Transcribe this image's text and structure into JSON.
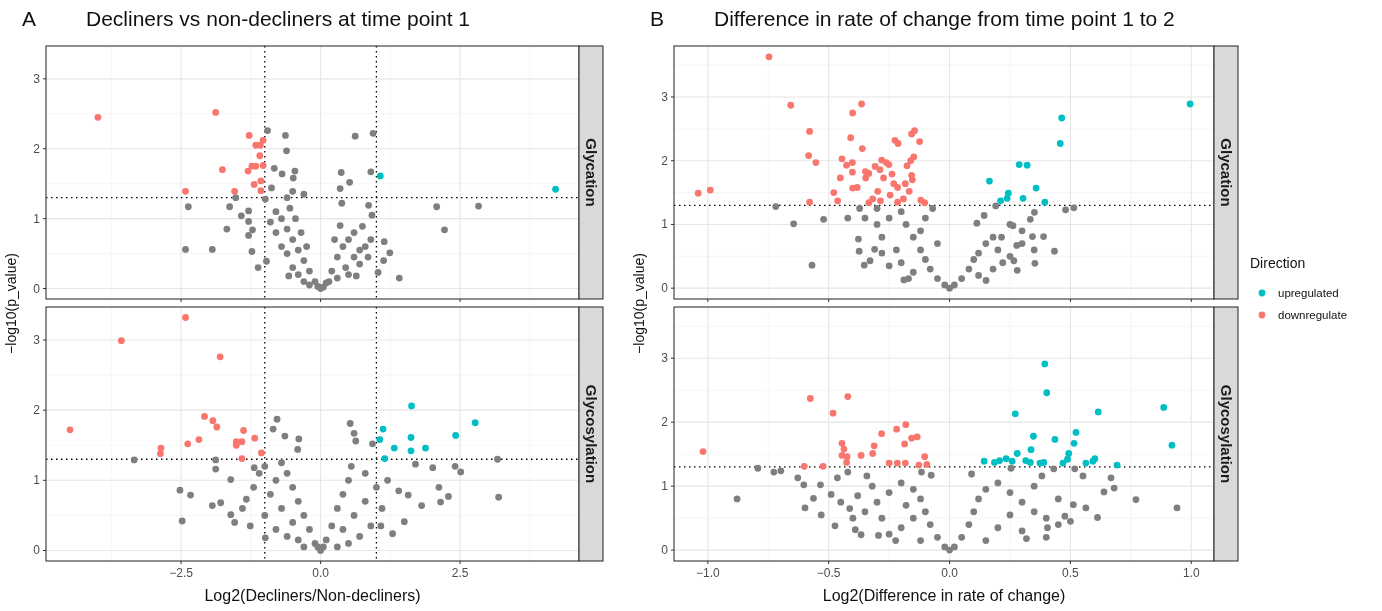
{
  "chart_data": [
    {
      "type": "scatter",
      "title": "Decliners vs non-decliners at time point 1",
      "annotations": [
        "A"
      ],
      "subtitle": "Glycation",
      "ylabel": "−log10(p_value)",
      "xlim": [
        -4.92,
        4.63
      ],
      "xticks": [
        {
          "value": -2.5,
          "label": null
        },
        {
          "value": 0,
          "label": null
        },
        {
          "value": 2.5,
          "label": null
        }
      ],
      "ylim": [
        -0.15,
        3.47
      ],
      "yticks": [
        0,
        1,
        2,
        3
      ],
      "tick_labels": "y",
      "grid": true,
      "marker": "circle",
      "ref_lines": [
        {
          "axis": "y",
          "value": 1.3,
          "line_style": "dotted"
        },
        {
          "axis": "x",
          "value": -1,
          "line_style": "dotted"
        },
        {
          "axis": "x",
          "value": 1,
          "line_style": "dotted"
        }
      ],
      "series": [
        {
          "color": "#7f7f7f",
          "x": [
            -0.95,
            -0.63,
            -0.61,
            0.62,
            0.94,
            0.9,
            0.37,
            0.52,
            0.35,
            0.38,
            0.86,
            0.92,
            2.08,
            2.83,
            2.22,
            1.41,
            1.24,
            1.13,
            1.14,
            1.03,
            0.75,
            -1.52,
            -2.37,
            -1.63,
            -1.68,
            -2.42,
            -1.94,
            -1.42,
            -1.29,
            -1.29,
            -1.29,
            -1.22,
            -1.23,
            -1.12,
            -0.97,
            -0.83,
            -0.69,
            -0.46,
            -0.49,
            -0.5,
            -0.3,
            -0.88,
            -0.99,
            -0.57,
            0.64,
            -0.1,
            -0.2,
            -0.3,
            -0.4,
            -0.5,
            -0.6,
            -0.7,
            -0.8,
            -0.35,
            -0.45,
            -0.55,
            -0.6,
            -0.7,
            -0.8,
            -0.9,
            -0.5,
            -0.4,
            -0.3,
            -0.2,
            -0.6,
            -0.25,
            0.1,
            0.2,
            0.3,
            0.4,
            0.5,
            0.6,
            0.3,
            0.45,
            0.6,
            0.7,
            0.8,
            0.9,
            0.25,
            0.35,
            0.5,
            0.7,
            0.85,
            0.05,
            0,
            -0.05,
            0.15
          ],
          "values": [
            2.26,
            2.19,
            1.97,
            2.18,
            2.22,
            1.67,
            1.66,
            1.52,
            1.43,
            1.22,
            1.19,
            1.05,
            1.17,
            1.18,
            0.84,
            0.15,
            0.51,
            0.4,
            0.67,
            0.23,
            0.89,
            1.3,
            1.17,
            1.17,
            0.85,
            0.56,
            0.56,
            1.04,
            1.11,
            0.96,
            0.76,
            0.84,
            0.53,
            0.3,
            0.39,
            1.72,
            1.64,
            1.68,
            1.58,
            1.39,
            1.35,
            1.44,
            1.28,
            0.18,
            0.18,
            0.1,
            0.25,
            0.4,
            0.55,
            0.7,
            0.85,
            1,
            1.1,
            0.8,
            1,
            1.15,
            0.5,
            0.6,
            0.8,
            0.95,
            0.3,
            0.2,
            0.1,
            0.05,
            1.3,
            0.6,
            0.08,
            0.25,
            0.45,
            0.6,
            0.7,
            0.8,
            0.15,
            0.3,
            0.45,
            0.55,
            0.6,
            0.7,
            0.7,
            0.9,
            0.2,
            0.35,
            0.45,
            0.02,
            0,
            0.03,
            0.1
          ]
        },
        {
          "color": "#00bfc4",
          "x": [
            1.07,
            4.21
          ],
          "values": [
            1.61,
            1.42
          ]
        },
        {
          "color": "#f8766d",
          "x": [
            -3.99,
            -1.88,
            -2.42,
            -1.76,
            -1.54,
            -1.28,
            -1.16,
            -1.08,
            -1.03,
            -1.09,
            -1.3,
            -1.23,
            -1.16,
            -1.03,
            -1.19,
            -1.07,
            -1.07
          ],
          "values": [
            2.45,
            2.52,
            1.39,
            1.7,
            1.39,
            2.19,
            2.05,
            2.05,
            2.12,
            1.9,
            1.68,
            1.75,
            1.75,
            1.76,
            1.49,
            1.54,
            1.4
          ]
        }
      ]
    },
    {
      "type": "scatter",
      "subtitle": "Glycosylation",
      "xlabel": "Log2(Decliners/Non-decliners)",
      "xlim": [
        -4.92,
        4.63
      ],
      "xticks": [
        {
          "value": -2.5,
          "label": "−2.5"
        },
        {
          "value": 0,
          "label": "0.0"
        },
        {
          "value": 2.5,
          "label": "2.5"
        }
      ],
      "ylim": [
        -0.15,
        3.47
      ],
      "yticks": [
        0,
        1,
        2,
        3
      ],
      "grid": true,
      "marker": "circle",
      "ref_lines": [
        {
          "axis": "y",
          "value": 1.3,
          "line_style": "dotted"
        },
        {
          "axis": "x",
          "value": -1,
          "line_style": "dotted"
        },
        {
          "axis": "x",
          "value": 1,
          "line_style": "dotted"
        }
      ],
      "series": [
        {
          "color": "#7f7f7f",
          "x": [
            -3.34,
            -2.52,
            -2.33,
            -2.48,
            -1.94,
            -1.79,
            -1.88,
            -1.61,
            -1.54,
            -1.88,
            -0.78,
            -0.85,
            -0.64,
            -0.39,
            -0.41,
            0.53,
            0.6,
            0.63,
            0.93,
            3.17,
            3.19,
            2.51,
            2.41,
            2.29,
            2.15,
            2.12,
            2.01,
            1.81,
            1.5,
            1.29,
            1.08,
            1.57,
            1.7,
            -1.26,
            -0.99,
            -1.33,
            -1.61,
            -1.19,
            -0.1,
            -0.2,
            -0.3,
            -0.4,
            -0.5,
            -0.6,
            -0.7,
            -0.5,
            -0.7,
            -0.9,
            -1,
            -0.8,
            -0.6,
            -0.4,
            -1.2,
            -1.4,
            -1.1,
            -0.3,
            -0.8,
            -1,
            0.1,
            0.2,
            0.3,
            0.4,
            0.5,
            0.55,
            0.4,
            0.6,
            0.8,
            1,
            1.2,
            1.1,
            0.9,
            0.7,
            0.5,
            1.4,
            0.3,
            0.8,
            0,
            0.05,
            -0.05
          ],
          "values": [
            1.29,
            0.86,
            0.79,
            0.42,
            0.64,
            0.68,
            1.16,
            0.51,
            0.4,
            1.29,
            1.87,
            1.73,
            1.63,
            1.59,
            1.44,
            1.81,
            1.67,
            1.56,
            1.52,
            1.3,
            0.76,
            1.12,
            1.2,
            0.77,
            0.69,
            0.9,
            1.18,
            0.64,
            0.41,
            0.24,
            0.35,
            0.79,
            1.23,
            0.35,
            0.18,
            0.73,
            1.01,
            1.18,
            0.1,
            0.3,
            0.5,
            0.7,
            0.9,
            1.1,
            1.25,
            0.4,
            0.6,
            0.8,
            0.5,
            0.3,
            0.2,
            0.15,
            0.9,
            0.6,
            1.1,
            0.05,
            1,
            1.2,
            0.15,
            0.35,
            0.6,
            0.8,
            1,
            1.2,
            0.3,
            0.5,
            0.7,
            0.9,
            1,
            0.6,
            0.35,
            0.2,
            0.1,
            0.85,
            0.05,
            1.1,
            0,
            0.05,
            0.05
          ]
        },
        {
          "color": "#00bfc4",
          "x": [
            1.63,
            1.12,
            1.06,
            1.62,
            1.32,
            1.62,
            1.88,
            1.15,
            2.42,
            2.77
          ],
          "values": [
            2.06,
            1.73,
            1.58,
            1.61,
            1.46,
            1.42,
            1.46,
            1.31,
            1.64,
            1.82
          ]
        },
        {
          "color": "#f8766d",
          "x": [
            -4.49,
            -3.57,
            -2.42,
            -1.8,
            -2.86,
            -2.87,
            -2.38,
            -2.18,
            -2.08,
            -1.93,
            -1.86,
            -1.38,
            -1.51,
            -1.41,
            -1.51,
            -1.18,
            -1.41,
            -1.06
          ],
          "values": [
            1.72,
            2.99,
            3.32,
            2.76,
            1.46,
            1.38,
            1.52,
            1.58,
            1.91,
            1.85,
            1.76,
            1.71,
            1.55,
            1.55,
            1.5,
            1.6,
            1.31,
            1.39
          ]
        }
      ]
    },
    {
      "type": "scatter",
      "title": "Difference in rate of change from time point 1 to 2",
      "annotations": [
        "B"
      ],
      "subtitle": "Glycation",
      "ylabel": "−log10(p_value)",
      "legend": "right",
      "legend_title": "Direction",
      "xlim": [
        -1.14,
        1.094
      ],
      "xticks": [
        {
          "value": -1,
          "label": null
        },
        {
          "value": -0.5,
          "label": null
        },
        {
          "value": 0,
          "label": null
        },
        {
          "value": 0.5,
          "label": null
        },
        {
          "value": 1,
          "label": null
        }
      ],
      "ylim": [
        -0.17,
        3.8
      ],
      "yticks": [
        0,
        1,
        2,
        3
      ],
      "tick_labels": "y",
      "grid": true,
      "marker": "circle",
      "ref_lines": [
        {
          "axis": "y",
          "value": 1.3,
          "line_style": "dotted"
        }
      ],
      "series": [
        {
          "color": "#7f7f7f",
          "x": [
            -0.719,
            -0.645,
            -0.569,
            -0.521,
            -0.421,
            -0.372,
            -0.374,
            -0.353,
            -0.329,
            -0.377,
            -0.31,
            -0.189,
            0.48,
            0.514,
            0.434,
            0.389,
            0.343,
            0.353,
            0.351,
            0.334,
            0.266,
            0.262,
            0.191,
            0.151,
            0.113,
            0.143,
            0.215,
            0.278,
            -0.02,
            -0.05,
            -0.08,
            -0.1,
            -0.12,
            -0.15,
            -0.18,
            -0.2,
            -0.25,
            -0.3,
            -0.28,
            -0.22,
            -0.2,
            -0.15,
            -0.25,
            -0.1,
            -0.07,
            -0.3,
            -0.35,
            -0.28,
            -0.12,
            -0.05,
            -0.17,
            0.02,
            0.05,
            0.08,
            0.1,
            0.12,
            0.15,
            0.18,
            0.2,
            0.22,
            0.25,
            0.3,
            0.3,
            0.25,
            0.18,
            0.12,
            0.35,
            0,
            0.28
          ],
          "values": [
            1.28,
            1.01,
            0.36,
            1.08,
            1.1,
            1.25,
            0.58,
            0.36,
            0.43,
            0.77,
            0.61,
            0.13,
            1.23,
            1.26,
            0.58,
            0.81,
            0.81,
            0.39,
            1.19,
            1.08,
            0.43,
            0.98,
            1.29,
            0.12,
            1.02,
            1.14,
            0.8,
            0.67,
            0.05,
            0.15,
            0.3,
            0.45,
            0.6,
            0.8,
            1,
            1.2,
            1.1,
            1,
            0.8,
            0.6,
            0.4,
            0.25,
            0.35,
            1.1,
            1.25,
            1.25,
            1.1,
            0.55,
            0.9,
            0.7,
            0.15,
            0.05,
            0.15,
            0.3,
            0.45,
            0.55,
            0.7,
            0.8,
            0.6,
            0.4,
            0.5,
            0.7,
            0.9,
            1,
            0.3,
            0.2,
            0.6,
            0,
            0.28
          ]
        },
        {
          "name": "upregulated",
          "color": "#00bfc4",
          "x": [
            0.995,
            0.464,
            0.458,
            0.288,
            0.321,
            0.165,
            0.243,
            0.238,
            0.211,
            0.304,
            0.358,
            0.394
          ],
          "values": [
            2.89,
            2.67,
            2.27,
            1.94,
            1.93,
            1.68,
            1.49,
            1.41,
            1.37,
            1.41,
            1.57,
            1.35
          ]
        },
        {
          "name": "downregulate",
          "color": "#f8766d",
          "x": [
            -0.747,
            -0.657,
            -0.579,
            -0.583,
            -0.553,
            -1.04,
            -0.99,
            -0.579,
            -0.479,
            -0.463,
            -0.452,
            -0.445,
            -0.426,
            -0.409,
            -0.401,
            -0.364,
            -0.402,
            -0.402,
            -0.401,
            -0.382,
            -0.361,
            -0.348,
            -0.347,
            -0.334,
            -0.308,
            -0.281,
            -0.262,
            -0.251,
            -0.288,
            -0.273,
            -0.297,
            -0.318,
            -0.286,
            -0.238,
            -0.231,
            -0.215,
            -0.246,
            -0.226,
            -0.213,
            -0.183,
            -0.176,
            -0.161,
            -0.148,
            -0.157,
            -0.145,
            -0.124,
            -0.157,
            -0.154,
            -0.167,
            -0.191,
            -0.215,
            -0.119,
            -0.103,
            -0.334
          ],
          "values": [
            3.63,
            2.87,
            2.46,
            2.08,
            1.97,
            1.49,
            1.54,
            1.35,
            1.5,
            1.37,
            1.73,
            2.03,
            1.93,
            2.36,
            2.75,
            2.89,
            1.97,
            1.82,
            1.57,
            1.58,
            2.19,
            1.83,
            1.73,
            1.8,
            1.91,
            2.01,
            1.97,
            1.94,
            1.86,
            1.73,
            1.52,
            1.4,
            1.37,
            1.79,
            1.64,
            1.58,
            1.46,
            2.32,
            2.27,
            1.64,
            1.92,
            2,
            2.06,
            2.42,
            2.47,
            2.3,
            1.77,
            1.7,
            1.52,
            1.4,
            1.35,
            1.38,
            1.34,
            1.34
          ]
        }
      ]
    },
    {
      "type": "scatter",
      "subtitle": "Glycosylation",
      "xlabel": "Log2(Difference in rate of change)",
      "xlim": [
        -1.14,
        1.094
      ],
      "xticks": [
        {
          "value": -1,
          "label": "−1.0"
        },
        {
          "value": -0.5,
          "label": "−0.5"
        },
        {
          "value": 0,
          "label": "0.0"
        },
        {
          "value": 0.5,
          "label": "0.5"
        },
        {
          "value": 1,
          "label": "1.0"
        }
      ],
      "ylim": [
        -0.17,
        3.8
      ],
      "yticks": [
        0,
        1,
        2,
        3
      ],
      "grid": true,
      "marker": "circle",
      "ref_lines": [
        {
          "axis": "y",
          "value": 1.3,
          "line_style": "dotted"
        }
      ],
      "series": [
        {
          "color": "#7f7f7f",
          "x": [
            -0.793,
            -0.879,
            -0.727,
            -0.698,
            -0.628,
            -0.603,
            -0.598,
            -0.563,
            -0.534,
            -0.531,
            -0.474,
            -0.464,
            -0.49,
            -0.421,
            -0.39,
            -0.366,
            -0.413,
            -0.342,
            -0.294,
            -0.223,
            -0.076,
            -0.116,
            0.091,
            0.254,
            0.771,
            0.941,
            0.612,
            0.564,
            0.639,
            0.681,
            0.668,
            0.552,
            0.518,
            0.431,
            0.382,
            0.318,
            0.405,
            0.477,
            0.512,
            -0.02,
            -0.05,
            -0.08,
            -0.1,
            -0.12,
            -0.15,
            -0.2,
            -0.25,
            -0.3,
            -0.35,
            -0.4,
            -0.28,
            -0.2,
            -0.15,
            -0.25,
            -0.32,
            -0.38,
            -0.18,
            -0.12,
            -0.45,
            0.02,
            0.05,
            0.08,
            0.1,
            0.12,
            0.15,
            0.2,
            0.25,
            0.3,
            0.35,
            0.4,
            0.45,
            0.2,
            0.3,
            0.15,
            0.25,
            0.35,
            0.45,
            0.4,
            0.5,
            0
          ],
          "values": [
            1.28,
            0.8,
            1.22,
            1.24,
            1.13,
            1.02,
            0.66,
            0.81,
            1.02,
            0.55,
            0.38,
            1.13,
            0.87,
            1.22,
            0.32,
            0.24,
            0.65,
            1.16,
            0.23,
            0.15,
            1.17,
            1.22,
            1.19,
            1.28,
            0.79,
            0.66,
            0.51,
            0.66,
            0.91,
            0.97,
            1.13,
            1.16,
            1.27,
            1.27,
            1.16,
            0.18,
            0.35,
            0.53,
            0.71,
            0.05,
            0.2,
            0.4,
            0.6,
            0.8,
            0.95,
            1.05,
            0.9,
            0.75,
            0.6,
            0.5,
            0.5,
            0.35,
            0.5,
            0.25,
            1,
            0.85,
            0.7,
            0.15,
            0.75,
            0.05,
            0.2,
            0.4,
            0.6,
            0.8,
            0.95,
            1.05,
            0.9,
            0.75,
            0.6,
            0.5,
            0.4,
            0.35,
            0.3,
            0.15,
            0.55,
            1,
            0.8,
            0.2,
            0.45,
            0
          ]
        },
        {
          "color": "#00bfc4",
          "x": [
            0.394,
            0.402,
            0.272,
            0.615,
            0.886,
            0.92,
            0.523,
            0.515,
            0.493,
            0.436,
            0.347,
            0.337,
            0.28,
            0.143,
            0.186,
            0.207,
            0.234,
            0.259,
            0.315,
            0.334,
            0.374,
            0.39,
            0.469,
            0.488,
            0.564,
            0.593,
            0.601,
            0.693
          ],
          "values": [
            2.91,
            2.46,
            2.13,
            2.16,
            2.23,
            1.64,
            1.84,
            1.67,
            1.51,
            1.73,
            1.78,
            1.57,
            1.51,
            1.39,
            1.37,
            1.4,
            1.43,
            1.39,
            1.4,
            1.37,
            1.36,
            1.37,
            1.36,
            1.42,
            1.36,
            1.39,
            1.43,
            1.33
          ]
        },
        {
          "color": "#f8766d",
          "x": [
            -1.02,
            -0.576,
            -0.421,
            -0.482,
            -0.601,
            -0.523,
            -0.445,
            -0.437,
            -0.445,
            -0.424,
            -0.426,
            -0.366,
            -0.318,
            -0.312,
            -0.281,
            -0.219,
            -0.181,
            -0.186,
            -0.157,
            -0.134,
            -0.103,
            -0.25,
            -0.216,
            -0.183,
            -0.127,
            -0.094
          ],
          "values": [
            1.54,
            2.37,
            2.4,
            2.14,
            1.31,
            1.31,
            1.67,
            1.58,
            1.48,
            1.46,
            1.37,
            1.48,
            1.51,
            1.63,
            1.82,
            1.89,
            1.96,
            1.66,
            1.75,
            1.77,
            1.46,
            1.36,
            1.36,
            1.36,
            1.33,
            1.34
          ]
        }
      ]
    }
  ]
}
